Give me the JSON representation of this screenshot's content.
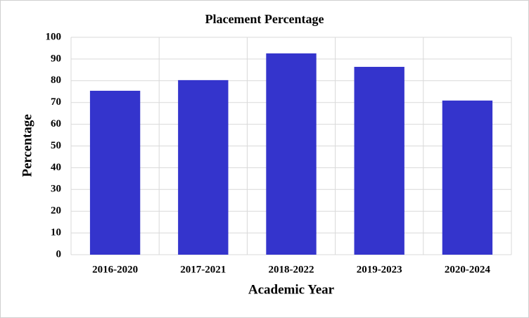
{
  "chart_data": {
    "type": "bar",
    "title": "Placement Percentage",
    "x_label": "Academic Year",
    "y_label": "Percentage",
    "categories": [
      "2016-2020",
      "2017-2021",
      "2018-2022",
      "2019-2023",
      "2020-2024"
    ],
    "values": [
      75.4,
      80.3,
      92.6,
      86.4,
      70.9
    ],
    "color": "#3434cc",
    "ylim": [
      0,
      100
    ],
    "yticks": [
      0,
      10,
      20,
      30,
      40,
      50,
      60,
      70,
      80,
      90,
      100
    ],
    "grid": true
  }
}
